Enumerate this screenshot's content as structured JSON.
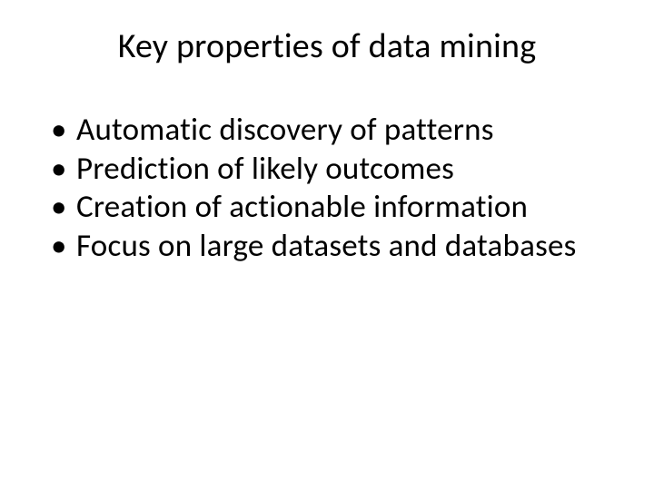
{
  "slide": {
    "title": "Key properties of data mining",
    "bullets": [
      "Automatic discovery of patterns",
      "Prediction of likely outcomes",
      "Creation of actionable information",
      "Focus on large datasets and databases"
    ],
    "title_fontsize": 38,
    "bullet_fontsize": 35,
    "text_color": "#000000",
    "background_color": "#ffffff",
    "font_family": "Calibri"
  }
}
